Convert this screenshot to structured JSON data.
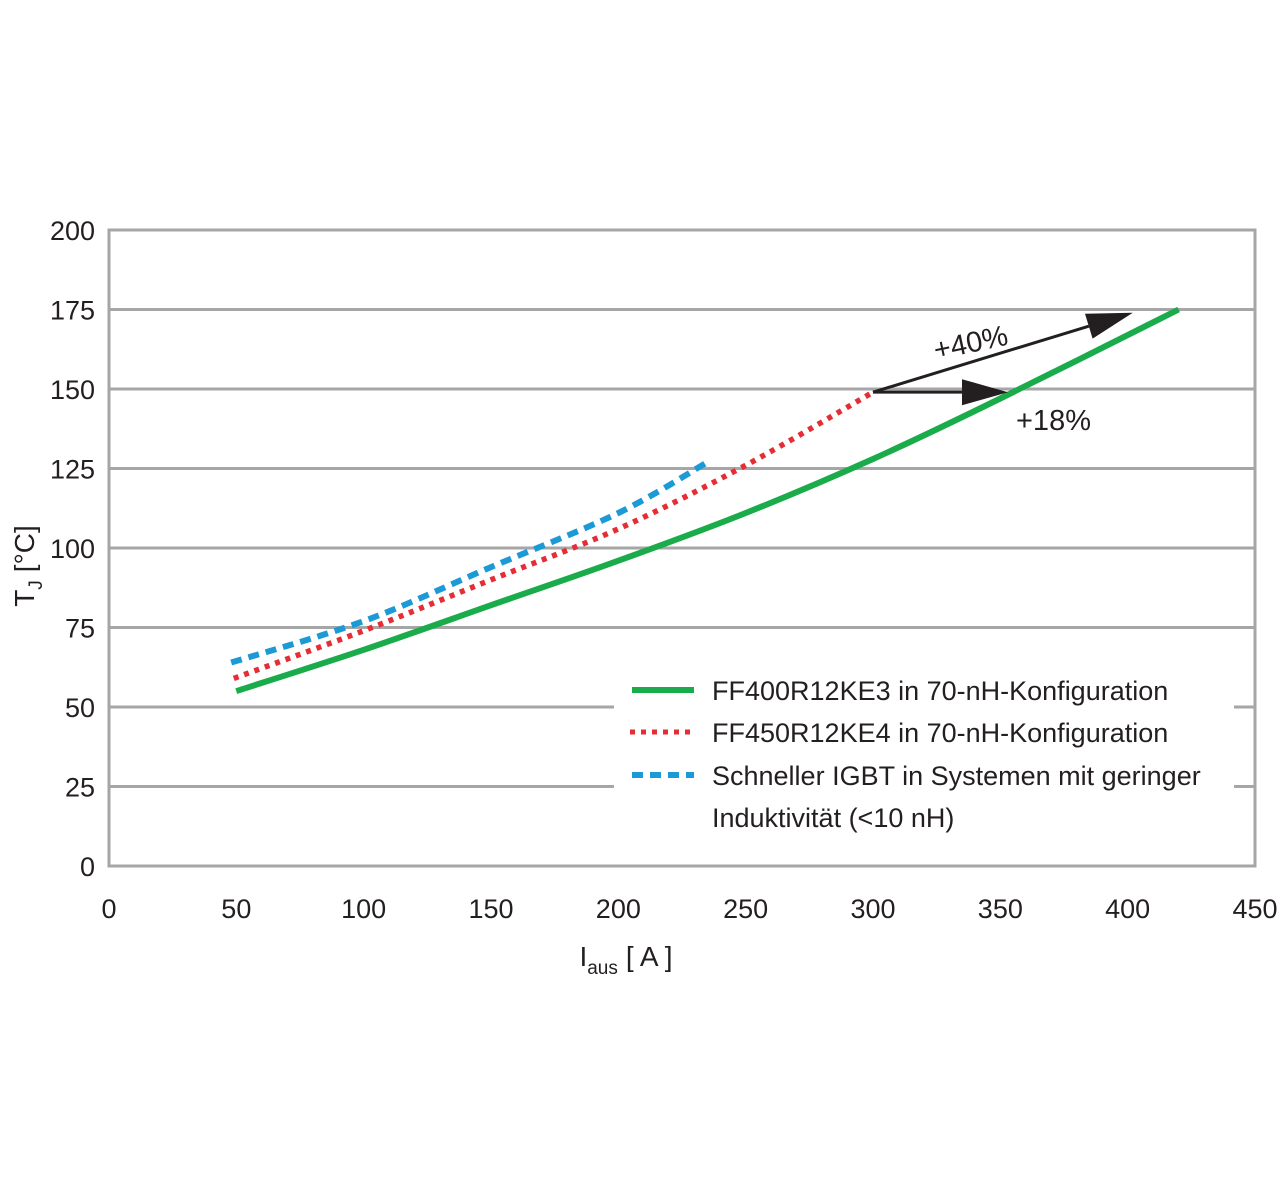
{
  "chart_data": {
    "type": "line",
    "xlabel": "I",
    "xlabel_sub": "aus",
    "xlabel_unit": "[ A ]",
    "ylabel": "T",
    "ylabel_sub": "J",
    "ylabel_unit": "[°C]",
    "xlim": [
      0,
      450
    ],
    "ylim": [
      0,
      200
    ],
    "xticks": [
      0,
      50,
      100,
      150,
      200,
      250,
      300,
      350,
      400,
      450
    ],
    "yticks": [
      0,
      25,
      50,
      75,
      100,
      125,
      150,
      175,
      200
    ],
    "grid": "horizontal",
    "legend_position": "bottom-right",
    "series": [
      {
        "name": "FF400R12KE3 in 70-nH-Konfiguration",
        "style": "solid",
        "color": "#1aab4b",
        "x": [
          50,
          100,
          150,
          200,
          250,
          300,
          350,
          420
        ],
        "y": [
          55,
          68,
          82,
          96,
          111,
          128,
          147,
          175
        ]
      },
      {
        "name": "FF450R12KE4 in 70-nH-Konfiguration",
        "style": "dotted",
        "color": "#e52d35",
        "x": [
          49,
          100,
          150,
          200,
          250,
          300
        ],
        "y": [
          59,
          74,
          90,
          106,
          126,
          149
        ]
      },
      {
        "name": "Schneller IGBT in Systemen mit geringer Induktivität (<10 nH)",
        "name_lines": [
          "Schneller IGBT in Systemen mit geringer",
          "Induktivität (<10 nH)"
        ],
        "style": "dashed",
        "color": "#1b9ad6",
        "x": [
          48,
          100,
          150,
          200,
          235
        ],
        "y": [
          64,
          77,
          94,
          111,
          127
        ]
      }
    ],
    "annotations": [
      {
        "text": "+40%",
        "from": [
          300,
          149
        ],
        "to": [
          402,
          174
        ]
      },
      {
        "text": "+18%",
        "from": [
          300,
          149
        ],
        "to": [
          353,
          149
        ]
      }
    ]
  }
}
